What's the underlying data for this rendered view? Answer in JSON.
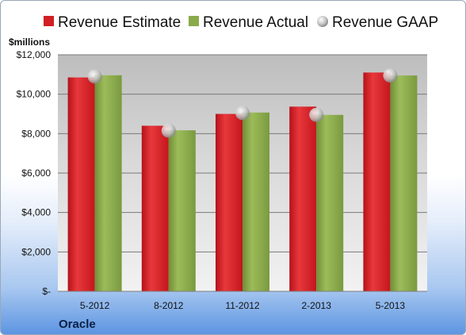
{
  "chart_data": {
    "type": "bar",
    "company": "Oracle",
    "unit_label": "$millions",
    "categories": [
      "5-2012",
      "8-2012",
      "11-2012",
      "2-2013",
      "5-2013"
    ],
    "series": [
      {
        "name": "Revenue Estimate",
        "type": "bar",
        "color": "#d11f24",
        "values": [
          10850,
          8400,
          9000,
          9370,
          11100
        ]
      },
      {
        "name": "Revenue Actual",
        "type": "bar",
        "color": "#8aaa4a",
        "values": [
          10960,
          8170,
          9070,
          8950,
          10950
        ]
      },
      {
        "name": "Revenue GAAP",
        "type": "marker",
        "color": "#c4c4c4",
        "values": [
          10900,
          8150,
          9050,
          8950,
          10950
        ]
      }
    ],
    "ylim": [
      0,
      12000
    ],
    "yticks": [
      {
        "value": 0,
        "label": "$-"
      },
      {
        "value": 2000,
        "label": "$2,000"
      },
      {
        "value": 4000,
        "label": "$4,000"
      },
      {
        "value": 6000,
        "label": "$6,000"
      },
      {
        "value": 8000,
        "label": "$8,000"
      },
      {
        "value": 10000,
        "label": "$10,000"
      },
      {
        "value": 12000,
        "label": "$12,000"
      }
    ],
    "grid": true,
    "legend_position": "top"
  }
}
